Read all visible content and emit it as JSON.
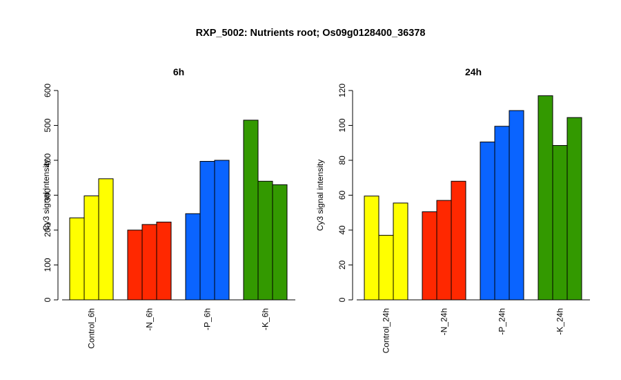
{
  "title": "RXP_5002: Nutrients root; Os09g0128400_36378",
  "chart_data": [
    {
      "type": "bar",
      "title": "6h",
      "ylabel": "Cy3 signal intensity",
      "ylim": [
        0,
        600
      ],
      "yticks": [
        0,
        100,
        200,
        300,
        400,
        500,
        600
      ],
      "categories": [
        "Control_6h",
        "-N_6h",
        "-P_6h",
        "-K_6h"
      ],
      "groups": [
        {
          "label": "Control_6h",
          "color": "#ffff00",
          "values": [
            235,
            298,
            347
          ]
        },
        {
          "label": "-N_6h",
          "color": "#ff2800",
          "values": [
            200,
            216,
            223
          ]
        },
        {
          "label": "-P_6h",
          "color": "#0a64ff",
          "values": [
            247,
            397,
            400
          ]
        },
        {
          "label": "-K_6h",
          "color": "#339900",
          "values": [
            515,
            340,
            330
          ]
        }
      ]
    },
    {
      "type": "bar",
      "title": "24h",
      "ylabel": "Cy3 signal intensity",
      "ylim": [
        0,
        120
      ],
      "yticks": [
        0,
        20,
        40,
        60,
        80,
        100,
        120
      ],
      "categories": [
        "Control_24h",
        "-N_24h",
        "-P_24h",
        "-K_24h"
      ],
      "groups": [
        {
          "label": "Control_24h",
          "color": "#ffff00",
          "values": [
            59.5,
            37,
            55.5
          ]
        },
        {
          "label": "-N_24h",
          "color": "#ff2800",
          "values": [
            50.5,
            57,
            68
          ]
        },
        {
          "label": "-P_24h",
          "color": "#0a64ff",
          "values": [
            90.5,
            99.5,
            108.5
          ]
        },
        {
          "label": "-K_24h",
          "color": "#339900",
          "values": [
            117,
            88.5,
            104.5
          ]
        }
      ]
    }
  ]
}
